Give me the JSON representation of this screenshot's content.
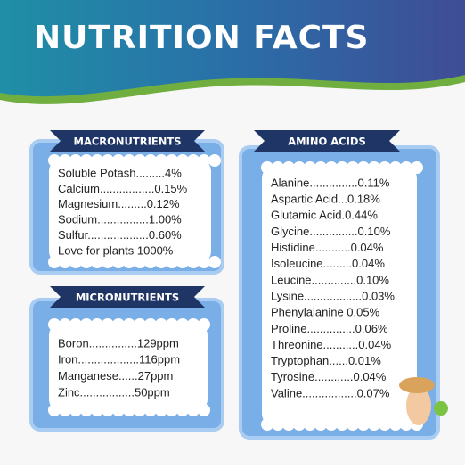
{
  "header": {
    "title": "NUTRITION FACTS"
  },
  "sections": [
    {
      "title": "MACRONUTRIENTS",
      "lines": [
        "Soluble Potash.........4%",
        "Calcium.................0.15%",
        "Magnesium.........0.12%",
        "Sodium................1.00%",
        "Sulfur...................0.60%",
        "Love for plants 1000%"
      ]
    },
    {
      "title": "MICRONUTRIENTS",
      "lines": [
        "Boron...............129ppm",
        "Iron...................116ppm",
        "Manganese......27ppm",
        "Zinc.................50ppm"
      ]
    },
    {
      "title": "AMINO ACIDS",
      "lines": [
        "Alanine...............0.11%",
        "Aspartic Acid...0.18%",
        "Glutamic Acid.0.44%",
        "Glycine...............0.10%",
        "Histidine...........0.04%",
        "Isoleucine.........0.04%",
        "Leucine..............0.10%",
        "Lysine..................0.03%",
        "Phenylalanine 0.05%",
        "Proline...............0.06%",
        "Threonine...........0.04%",
        "Tryptophan......0.01%",
        "Tyrosine............0.04%",
        "Valine.................0.07%"
      ]
    }
  ]
}
